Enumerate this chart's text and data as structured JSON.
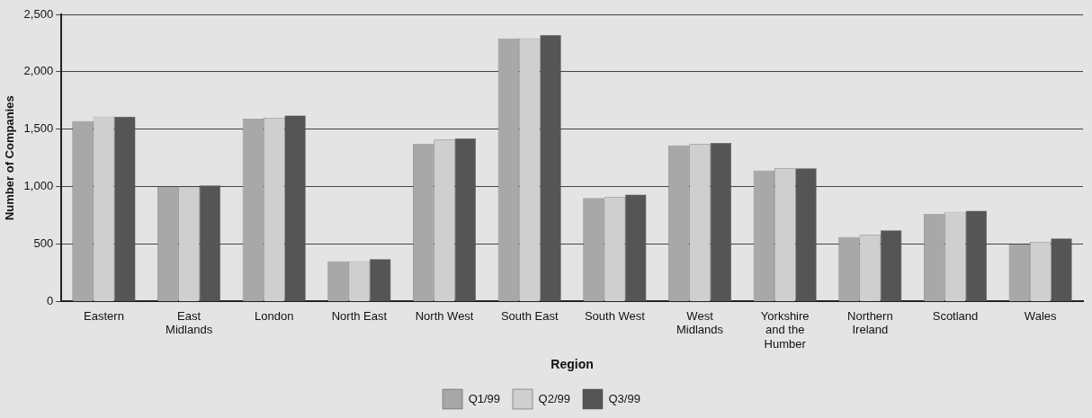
{
  "chart_data": {
    "type": "bar",
    "xlabel": "Region",
    "ylabel": "Number of Companies",
    "categories": [
      "Eastern",
      "East Midlands",
      "London",
      "North East",
      "North West",
      "South East",
      "South West",
      "West Midlands",
      "Yorkshire and the Humber",
      "Northern Ireland",
      "Scotland",
      "Wales"
    ],
    "series": [
      {
        "name": "Q1/99",
        "color": "#a8a8a8",
        "values": [
          1570,
          1000,
          1590,
          350,
          1370,
          2290,
          900,
          1360,
          1140,
          560,
          760,
          500
        ]
      },
      {
        "name": "Q2/99",
        "color": "#cfcfcf",
        "values": [
          1610,
          1000,
          1600,
          350,
          1410,
          2290,
          910,
          1370,
          1160,
          580,
          780,
          520
        ]
      },
      {
        "name": "Q3/99",
        "color": "#555555",
        "values": [
          1610,
          1010,
          1620,
          370,
          1420,
          2320,
          930,
          1380,
          1160,
          620,
          790,
          550
        ]
      }
    ],
    "ylim": [
      0,
      2500
    ],
    "yticks": [
      {
        "value": 0,
        "label": "0"
      },
      {
        "value": 500,
        "label": "500"
      },
      {
        "value": 1000,
        "label": "1,000"
      },
      {
        "value": 1500,
        "label": "1,500"
      },
      {
        "value": 2000,
        "label": "2,000"
      },
      {
        "value": 2500,
        "label": "2,500"
      }
    ],
    "grid": "y",
    "legend": "bottom"
  }
}
